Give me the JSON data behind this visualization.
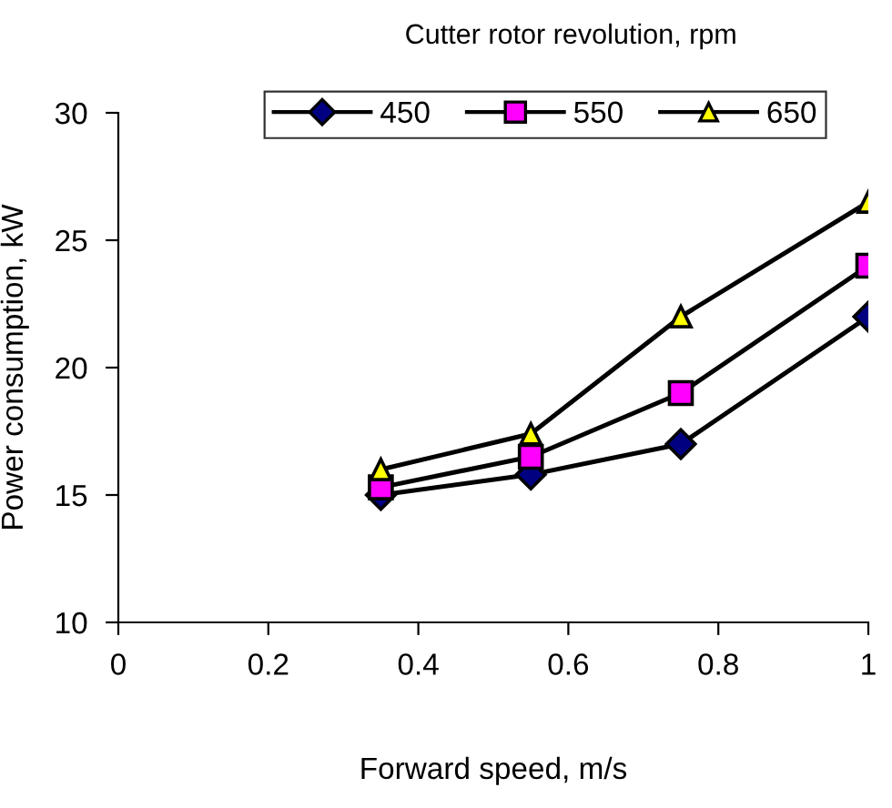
{
  "chart_data": {
    "type": "line",
    "legend_title": "Cutter rotor revolution, rpm",
    "xlabel": "Forward speed, m/s",
    "ylabel": "Power consumption, kW",
    "x": [
      0.35,
      0.55,
      0.75,
      1.0
    ],
    "series": [
      {
        "name": "450",
        "color": "#000080",
        "marker": "diamond",
        "values": [
          15,
          15.8,
          17,
          22
        ]
      },
      {
        "name": "550",
        "color": "#ff00ff",
        "marker": "square",
        "values": [
          15.3,
          16.5,
          19,
          24
        ]
      },
      {
        "name": "650",
        "color": "#ffff00",
        "marker": "triangle",
        "values": [
          16,
          17.4,
          22,
          26.5
        ]
      }
    ],
    "xlim": [
      0,
      1
    ],
    "xticks": [
      0,
      0.2,
      0.4,
      0.6,
      0.8,
      1
    ],
    "ylim": [
      10,
      30
    ],
    "yticks": [
      10,
      15,
      20,
      25,
      30
    ],
    "grid": false,
    "legend": "top",
    "line_style": "solid"
  }
}
